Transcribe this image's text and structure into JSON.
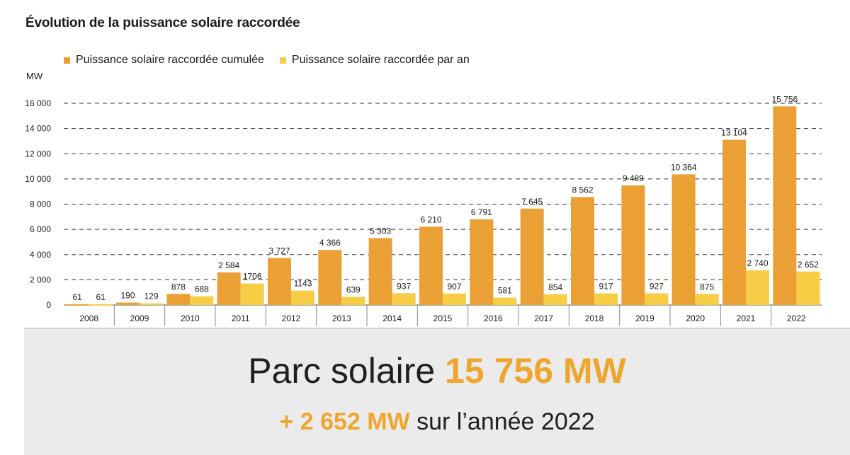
{
  "title": "Évolution de la puissance solaire raccordée",
  "colors": {
    "cumulative": "#eaa034",
    "annual": "#f7cd45",
    "grid": "#333333"
  },
  "chart_data": {
    "type": "bar",
    "unit_label": "MW",
    "categories": [
      "2008",
      "2009",
      "2010",
      "2011",
      "2012",
      "2013",
      "2014",
      "2015",
      "2016",
      "2017",
      "2018",
      "2019",
      "2020",
      "2021",
      "2022"
    ],
    "series": [
      {
        "name": "Puissance solaire raccordée cumulée",
        "values": [
          61,
          190,
          878,
          2584,
          3727,
          4366,
          5303,
          6210,
          6791,
          7645,
          8562,
          9489,
          10364,
          13104,
          15756
        ],
        "labels": [
          "61",
          "190",
          "878",
          "2 584",
          "3 727",
          "4 366",
          "5 303",
          "6 210",
          "6 791",
          "7 645",
          "8 562",
          "9 489",
          "10 364",
          "13 104",
          "15 756"
        ]
      },
      {
        "name": "Puissance solaire raccordée par an",
        "values": [
          61,
          129,
          688,
          1706,
          1143,
          639,
          937,
          907,
          581,
          854,
          917,
          927,
          875,
          2740,
          2652
        ],
        "labels": [
          "61",
          "129",
          "688",
          "1706",
          "1143",
          "639",
          "937",
          "907",
          "581",
          "854",
          "917",
          "927",
          "875",
          "2 740",
          "2 652"
        ]
      }
    ],
    "yticks": [
      0,
      2000,
      4000,
      6000,
      8000,
      10000,
      12000,
      14000,
      16000
    ],
    "ytick_labels": [
      "0",
      "2 000",
      "4 000",
      "6 000",
      "8 000",
      "10 000",
      "12 000",
      "14 000",
      "16 000"
    ],
    "ylim": [
      0,
      16000
    ],
    "grid": "dashed",
    "legend_position": "top-left"
  },
  "summary": {
    "line1_prefix": "Parc solaire ",
    "line1_value": "15 756 MW",
    "line2_value": "+ 2 652 MW",
    "line2_suffix": " sur l’année 2022"
  }
}
